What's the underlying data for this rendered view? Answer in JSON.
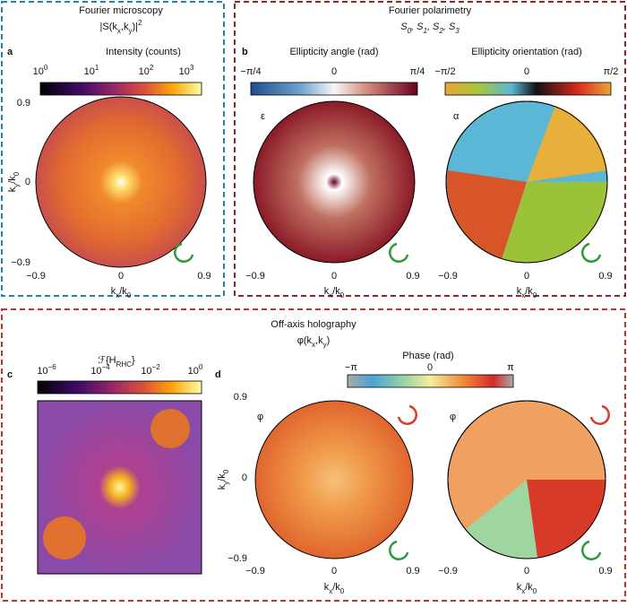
{
  "panel_a": {
    "letter": "a",
    "title": "Fourier microscopy",
    "subtitle": [
      "|S(k",
      {
        "sub": "x"
      },
      ",k",
      {
        "sub": "y"
      },
      ")|",
      {
        "sup": "2"
      }
    ],
    "colorbar_label": "Intensity (counts)",
    "colorbar_ticks": [
      [
        "10",
        {
          "sup": "0"
        }
      ],
      [
        "10",
        {
          "sup": "1"
        }
      ],
      [
        "10",
        {
          "sup": "2"
        }
      ],
      [
        "10",
        {
          "sup": "3"
        }
      ]
    ],
    "y_ticks": [
      "0.9",
      "0",
      "−0.9"
    ],
    "x_ticks": [
      "−0.9",
      "0",
      "0.9"
    ],
    "x_label": [
      "k",
      {
        "sub": "x"
      },
      "/k",
      {
        "sub": "0"
      }
    ],
    "y_label": [
      "k",
      {
        "sub": "y"
      },
      "/k",
      {
        "sub": "0"
      }
    ]
  },
  "panel_b": {
    "letter": "b",
    "title": "Fourier polarimetry",
    "subtitle": [
      "S",
      {
        "sub": "0"
      },
      ", S",
      {
        "sub": "1"
      },
      ", S",
      {
        "sub": "2"
      },
      ", S",
      {
        "sub": "3"
      }
    ],
    "maps": [
      {
        "colorbar_label": "Ellipticity angle (rad)",
        "colorbar_ticks": [
          "−π/4",
          "0",
          "π/4"
        ],
        "symbol": "ε",
        "x_ticks": [
          "−0.9",
          "0",
          "0.9"
        ],
        "x_label": [
          "k",
          {
            "sub": "x"
          },
          "/k",
          {
            "sub": "0"
          }
        ]
      },
      {
        "colorbar_label": "Ellipticity orientation (rad)",
        "colorbar_ticks": [
          "−π/2",
          "0",
          "π/2"
        ],
        "symbol": "α",
        "x_ticks": [
          "−0.9",
          "0",
          "0.9"
        ],
        "x_label": [
          "k",
          {
            "sub": "x"
          },
          "/k",
          {
            "sub": "0"
          }
        ]
      }
    ]
  },
  "panel_cd": {
    "title": "Off-axis holography",
    "subtitle": [
      "φ(k",
      {
        "sub": "x"
      },
      ",k",
      {
        "sub": "y"
      },
      ")"
    ]
  },
  "panel_c": {
    "letter": "c",
    "colorbar_label": [
      "ℱ{H",
      {
        "sub": "RHC"
      },
      "}"
    ],
    "colorbar_ticks": [
      [
        "10",
        {
          "sup": "−6"
        }
      ],
      [
        "10",
        {
          "sup": "−4"
        }
      ],
      [
        "10",
        {
          "sup": "−2"
        }
      ],
      [
        "10",
        {
          "sup": "0"
        }
      ]
    ]
  },
  "panel_d": {
    "letter": "d",
    "colorbar_label": "Phase (rad)",
    "colorbar_ticks": [
      "−π",
      "0",
      "π"
    ],
    "y_ticks": [
      "0.9",
      "0",
      "−0.9"
    ],
    "y_label": [
      "k",
      {
        "sub": "y"
      },
      "/k",
      {
        "sub": "0"
      }
    ],
    "maps": [
      {
        "symbol": "φ",
        "x_ticks": [
          "−0.9",
          "0",
          "0.9"
        ],
        "x_label": [
          "k",
          {
            "sub": "x"
          },
          "/k",
          {
            "sub": "0"
          }
        ]
      },
      {
        "symbol": "φ",
        "x_ticks": [
          "−0.9",
          "0",
          "0.9"
        ],
        "x_label": [
          "k",
          {
            "sub": "x"
          },
          "/k",
          {
            "sub": "0"
          }
        ]
      }
    ]
  }
}
